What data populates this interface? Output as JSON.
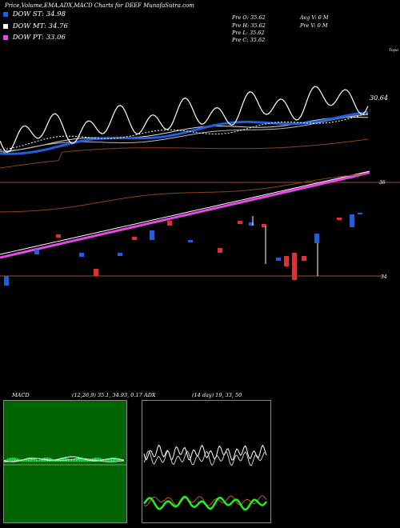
{
  "header": {
    "title": "Price,Volume,EMA,ADX,MACD Charts for DEEF MunafaSutra.com"
  },
  "legend": [
    {
      "label": "DOW ST: 34.98",
      "color": "#1d5fe0"
    },
    {
      "label": "DOW MT: 34.76",
      "color": "#ffffff"
    },
    {
      "label": "DOW PT: 33.06",
      "color": "#ee44ee"
    }
  ],
  "ohlc": {
    "prev_o": "Pre O: 35.62",
    "prev_h": "Pre H: 35.62",
    "prev_l": "Pre L: 35.62",
    "prev_c": "Pre C: 35.62",
    "avg_v": "Avg V: 0 M",
    "prev_v": "Pre V: 0 M"
  },
  "top_right": "Topo",
  "price_label": "30.64",
  "price_tick_36": "36",
  "price_tick_34": "34",
  "macd": {
    "label": "MACD",
    "params": "(12,26,9) 35.1, 34.93, 0.17"
  },
  "adx": {
    "label": "ADX",
    "params": "(14 day) 19, 33, 50"
  },
  "chart_data": {
    "type": "candlestick",
    "candles": [
      {
        "o": 34.0,
        "c": 34.0,
        "h": 34.0,
        "l": 34.0
      },
      {
        "o": 34.0,
        "c": 34.0,
        "h": 34.0,
        "l": 34.0
      },
      {
        "o": 34.9,
        "c": 34.9,
        "h": 34.9,
        "l": 34.9
      },
      {
        "o": 35.0,
        "c": 35.0,
        "h": 35.0,
        "l": 35.0
      },
      {
        "o": 35.3,
        "c": 35.3,
        "h": 35.3,
        "l": 35.3
      },
      {
        "o": 35.1,
        "c": 35.1,
        "h": 35.1,
        "l": 35.1
      },
      {
        "o": 35.6,
        "c": 35.6,
        "h": 35.6,
        "l": 35.6
      },
      {
        "o": 35.2,
        "c": 35.2,
        "h": 35.2,
        "l": 35.2
      },
      {
        "o": 34.1,
        "c": 34.1,
        "h": 34.1,
        "l": 34.1
      },
      {
        "o": 34.5,
        "c": 34.5,
        "h": 34.5,
        "l": 34.5
      }
    ],
    "ema_short": [
      34.1,
      34.2,
      34.3,
      34.5,
      34.6,
      34.8,
      34.9,
      34.95,
      34.98
    ],
    "ema_mid": [
      34.0,
      34.1,
      34.2,
      34.3,
      34.4,
      34.5,
      34.6,
      34.7,
      34.76
    ],
    "ema_long": [
      32.1,
      32.3,
      32.5,
      32.7,
      32.8,
      32.9,
      33.0,
      33.03,
      33.06
    ]
  }
}
